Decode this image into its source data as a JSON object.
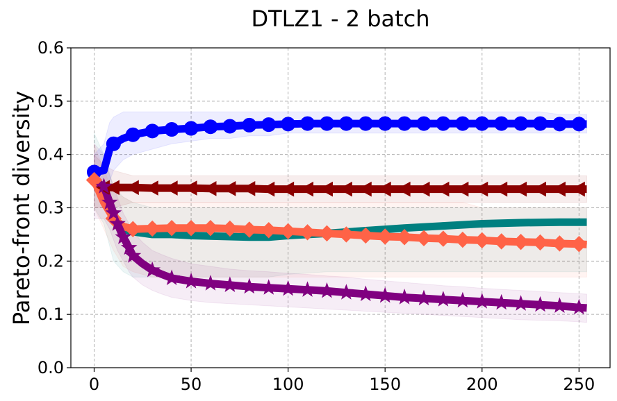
{
  "chart_data": {
    "type": "line",
    "title": "DTLZ1 - 2 batch",
    "xlabel": "",
    "ylabel": "Pareto-front diversity",
    "xlim": [
      -12,
      266
    ],
    "ylim": [
      0,
      0.6
    ],
    "xticks": [
      0,
      50,
      100,
      150,
      200,
      250
    ],
    "yticks": [
      0.0,
      0.1,
      0.2,
      0.3,
      0.4,
      0.5,
      0.6
    ],
    "xtick_labels": [
      "0",
      "50",
      "100",
      "150",
      "200",
      "250"
    ],
    "ytick_labels": [
      "0.0",
      "0.1",
      "0.2",
      "0.3",
      "0.4",
      "0.5",
      "0.6"
    ],
    "grid": true,
    "series": [
      {
        "name": "teal",
        "color": "#008080",
        "marker": "none",
        "x": [
          0,
          5,
          10,
          15,
          20,
          30,
          40,
          50,
          60,
          70,
          80,
          90,
          100,
          120,
          140,
          160,
          180,
          200,
          220,
          240,
          254
        ],
        "y": [
          0.36,
          0.33,
          0.28,
          0.26,
          0.255,
          0.25,
          0.25,
          0.248,
          0.247,
          0.246,
          0.245,
          0.245,
          0.248,
          0.252,
          0.257,
          0.262,
          0.266,
          0.27,
          0.272,
          0.273,
          0.273
        ],
        "band_low": [
          0.3,
          0.27,
          0.2,
          0.18,
          0.17,
          0.17,
          0.17,
          0.17,
          0.17,
          0.17,
          0.17,
          0.17,
          0.175,
          0.18,
          0.18,
          0.18,
          0.18,
          0.18,
          0.18,
          0.18,
          0.18
        ],
        "band_high": [
          0.44,
          0.4,
          0.34,
          0.32,
          0.31,
          0.3,
          0.3,
          0.3,
          0.3,
          0.3,
          0.3,
          0.3,
          0.3,
          0.3,
          0.3,
          0.3,
          0.3,
          0.3,
          0.3,
          0.3,
          0.3
        ]
      },
      {
        "name": "blue",
        "color": "#0000ff",
        "marker": "circle",
        "x": [
          0,
          5,
          8,
          10,
          15,
          20,
          30,
          40,
          50,
          60,
          70,
          80,
          90,
          100,
          110,
          120,
          130,
          140,
          150,
          160,
          170,
          180,
          190,
          200,
          210,
          220,
          230,
          240,
          250,
          254
        ],
        "y": [
          0.367,
          0.37,
          0.41,
          0.42,
          0.43,
          0.437,
          0.444,
          0.447,
          0.449,
          0.452,
          0.453,
          0.455,
          0.456,
          0.457,
          0.458,
          0.458,
          0.458,
          0.458,
          0.458,
          0.458,
          0.458,
          0.458,
          0.458,
          0.458,
          0.458,
          0.458,
          0.458,
          0.457,
          0.457,
          0.457
        ],
        "markers_x": [
          0,
          10,
          20,
          30,
          40,
          50,
          60,
          70,
          80,
          90,
          100,
          110,
          120,
          130,
          140,
          150,
          160,
          170,
          180,
          190,
          200,
          210,
          220,
          230,
          240,
          250
        ],
        "band_low": [
          0.34,
          0.33,
          0.35,
          0.37,
          0.39,
          0.4,
          0.41,
          0.42,
          0.425,
          0.43,
          0.43,
          0.435,
          0.435,
          0.44,
          0.44,
          0.44,
          0.44,
          0.44,
          0.44,
          0.44,
          0.44,
          0.44,
          0.44,
          0.44,
          0.44,
          0.44,
          0.44,
          0.44,
          0.44,
          0.44
        ],
        "band_high": [
          0.4,
          0.42,
          0.46,
          0.47,
          0.48,
          0.48,
          0.48,
          0.48,
          0.48,
          0.48,
          0.48,
          0.48,
          0.48,
          0.48,
          0.48,
          0.48,
          0.48,
          0.48,
          0.48,
          0.48,
          0.48,
          0.48,
          0.48,
          0.48,
          0.48,
          0.48,
          0.48,
          0.475,
          0.475,
          0.475
        ]
      },
      {
        "name": "darkred",
        "color": "#8b0000",
        "marker": "triangle-left",
        "x": [
          0,
          5,
          10,
          20,
          30,
          40,
          50,
          60,
          70,
          80,
          90,
          100,
          110,
          120,
          130,
          140,
          150,
          160,
          170,
          180,
          190,
          200,
          210,
          220,
          230,
          240,
          250,
          254
        ],
        "y": [
          0.35,
          0.338,
          0.338,
          0.338,
          0.337,
          0.337,
          0.337,
          0.336,
          0.336,
          0.336,
          0.335,
          0.335,
          0.335,
          0.335,
          0.335,
          0.335,
          0.335,
          0.335,
          0.335,
          0.335,
          0.335,
          0.335,
          0.335,
          0.335,
          0.335,
          0.335,
          0.335,
          0.335
        ],
        "markers_x": [
          5,
          10,
          20,
          30,
          40,
          50,
          60,
          70,
          80,
          90,
          100,
          110,
          120,
          130,
          140,
          150,
          160,
          170,
          180,
          190,
          200,
          210,
          220,
          230,
          240,
          250
        ],
        "band_low": [
          0.3,
          0.3,
          0.3,
          0.31,
          0.31,
          0.31,
          0.31,
          0.31,
          0.31,
          0.31,
          0.31,
          0.31,
          0.31,
          0.31,
          0.31,
          0.31,
          0.31,
          0.31,
          0.31,
          0.31,
          0.31,
          0.31,
          0.31,
          0.31,
          0.31,
          0.31,
          0.31,
          0.31
        ],
        "band_high": [
          0.4,
          0.38,
          0.37,
          0.36,
          0.36,
          0.36,
          0.36,
          0.36,
          0.36,
          0.36,
          0.36,
          0.36,
          0.36,
          0.36,
          0.36,
          0.36,
          0.36,
          0.36,
          0.36,
          0.36,
          0.36,
          0.36,
          0.36,
          0.36,
          0.36,
          0.36,
          0.36,
          0.36
        ]
      },
      {
        "name": "tomato",
        "color": "#ff6347",
        "marker": "diamond",
        "x": [
          0,
          5,
          10,
          15,
          20,
          30,
          40,
          50,
          60,
          70,
          80,
          90,
          100,
          110,
          120,
          130,
          140,
          150,
          160,
          170,
          180,
          190,
          200,
          210,
          220,
          230,
          240,
          250,
          254
        ],
        "y": [
          0.352,
          0.31,
          0.28,
          0.265,
          0.26,
          0.261,
          0.262,
          0.262,
          0.262,
          0.261,
          0.259,
          0.258,
          0.256,
          0.254,
          0.252,
          0.25,
          0.248,
          0.246,
          0.245,
          0.243,
          0.242,
          0.24,
          0.239,
          0.237,
          0.236,
          0.235,
          0.233,
          0.232,
          0.231
        ],
        "markers_x": [
          0,
          10,
          20,
          30,
          40,
          50,
          60,
          70,
          80,
          90,
          100,
          110,
          120,
          130,
          140,
          150,
          160,
          170,
          180,
          190,
          200,
          210,
          220,
          230,
          240,
          250
        ],
        "band_low": [
          0.3,
          0.26,
          0.22,
          0.19,
          0.18,
          0.17,
          0.17,
          0.17,
          0.17,
          0.17,
          0.17,
          0.17,
          0.17,
          0.17,
          0.17,
          0.17,
          0.17,
          0.17,
          0.17,
          0.17,
          0.17,
          0.17,
          0.17,
          0.17,
          0.17,
          0.17,
          0.17,
          0.17,
          0.17
        ],
        "band_high": [
          0.42,
          0.37,
          0.33,
          0.32,
          0.31,
          0.31,
          0.31,
          0.31,
          0.31,
          0.31,
          0.31,
          0.31,
          0.31,
          0.31,
          0.31,
          0.31,
          0.31,
          0.31,
          0.31,
          0.31,
          0.31,
          0.31,
          0.3,
          0.3,
          0.3,
          0.3,
          0.3,
          0.3,
          0.3
        ]
      },
      {
        "name": "purple",
        "color": "#800080",
        "marker": "star",
        "x": [
          0,
          5,
          8,
          10,
          12,
          15,
          18,
          20,
          25,
          30,
          35,
          40,
          50,
          60,
          70,
          80,
          90,
          100,
          110,
          120,
          130,
          140,
          150,
          160,
          170,
          180,
          190,
          200,
          210,
          220,
          230,
          240,
          250,
          254
        ],
        "y": [
          0.35,
          0.34,
          0.31,
          0.29,
          0.27,
          0.245,
          0.225,
          0.21,
          0.195,
          0.183,
          0.175,
          0.168,
          0.162,
          0.158,
          0.155,
          0.152,
          0.15,
          0.148,
          0.146,
          0.144,
          0.141,
          0.138,
          0.135,
          0.132,
          0.13,
          0.128,
          0.126,
          0.124,
          0.122,
          0.12,
          0.118,
          0.116,
          0.113,
          0.112
        ],
        "markers_x": [
          5,
          8,
          10,
          12,
          15,
          18,
          20,
          30,
          40,
          50,
          60,
          70,
          80,
          90,
          100,
          110,
          120,
          130,
          140,
          150,
          160,
          170,
          180,
          190,
          200,
          210,
          220,
          230,
          240,
          250
        ],
        "band_low": [
          0.28,
          0.28,
          0.26,
          0.24,
          0.22,
          0.2,
          0.18,
          0.17,
          0.155,
          0.145,
          0.138,
          0.132,
          0.126,
          0.122,
          0.12,
          0.118,
          0.116,
          0.114,
          0.112,
          0.11,
          0.108,
          0.106,
          0.104,
          0.102,
          0.1,
          0.098,
          0.096,
          0.094,
          0.092,
          0.09,
          0.089,
          0.088,
          0.086,
          0.085
        ],
        "band_high": [
          0.42,
          0.4,
          0.36,
          0.34,
          0.32,
          0.29,
          0.27,
          0.255,
          0.235,
          0.22,
          0.212,
          0.205,
          0.195,
          0.19,
          0.185,
          0.182,
          0.18,
          0.177,
          0.175,
          0.172,
          0.17,
          0.166,
          0.163,
          0.16,
          0.157,
          0.154,
          0.152,
          0.149,
          0.147,
          0.145,
          0.143,
          0.141,
          0.139,
          0.138
        ]
      }
    ]
  }
}
